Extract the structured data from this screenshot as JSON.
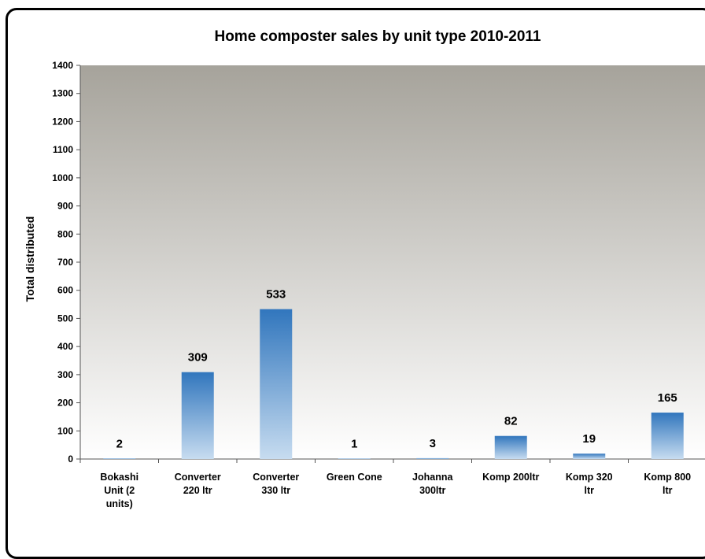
{
  "chart_data": {
    "type": "bar",
    "title": "Home composter sales by unit type 2010-2011",
    "xlabel": "",
    "ylabel": "Total distributed",
    "ylim": [
      0,
      1400
    ],
    "yticks": [
      0,
      100,
      200,
      300,
      400,
      500,
      600,
      700,
      800,
      900,
      1000,
      1100,
      1200,
      1300,
      1400
    ],
    "grid": false,
    "categories": [
      [
        "Bokashi",
        "Unit (2",
        "units)"
      ],
      [
        "Converter",
        "220 ltr"
      ],
      [
        "Converter",
        "330 ltr"
      ],
      [
        "Green Cone"
      ],
      [
        "Johanna",
        "300ltr"
      ],
      [
        "Komp 200ltr"
      ],
      [
        "Komp 320",
        "ltr"
      ],
      [
        "Komp 800",
        "ltr"
      ]
    ],
    "values": [
      2,
      309,
      533,
      1,
      3,
      82,
      19,
      165
    ],
    "data_labels": [
      "2",
      "309",
      "533",
      "1",
      "3",
      "82",
      "19",
      "165"
    ],
    "colors": {
      "bar_top": "#3176bd",
      "bar_bottom": "#c7dcf0",
      "plot_bg_top": "#a6a39b",
      "plot_bg_bottom": "#ffffff"
    }
  }
}
